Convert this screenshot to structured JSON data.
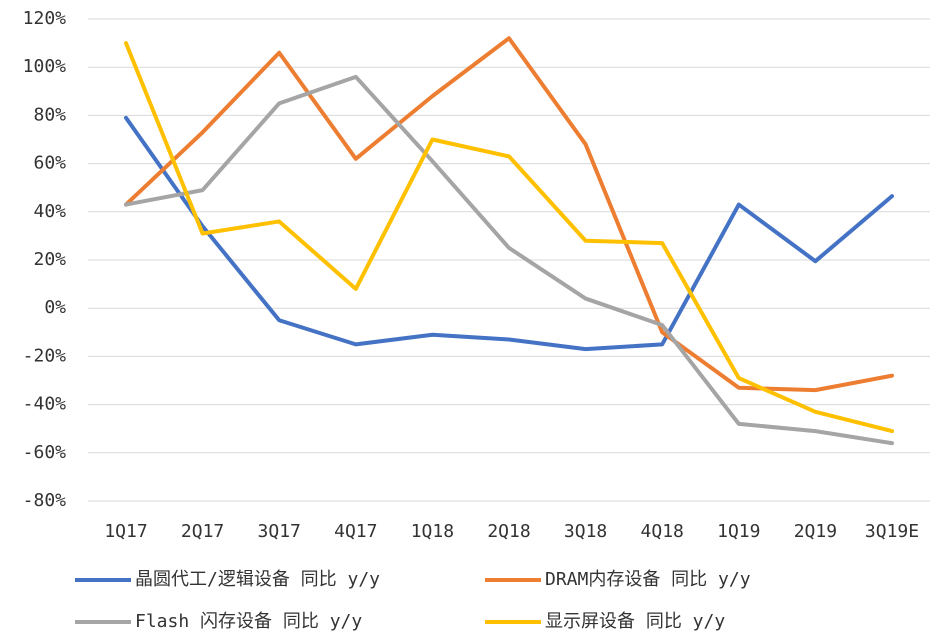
{
  "chart_data": {
    "type": "line",
    "categories": [
      "1Q17",
      "2Q17",
      "3Q17",
      "4Q17",
      "1Q18",
      "2Q18",
      "3Q18",
      "4Q18",
      "1Q19",
      "2Q19",
      "3Q19E"
    ],
    "series": [
      {
        "name": "晶圆代工/逻辑设备 同比 y/y",
        "color": "#4472c4",
        "values": [
          79,
          34,
          -5,
          -15,
          -11,
          -13,
          -17,
          -15,
          43,
          19.5,
          46.5
        ]
      },
      {
        "name": "DRAM内存设备 同比 y/y",
        "color": "#ed7d31",
        "values": [
          43,
          73,
          106,
          62,
          88,
          112,
          68,
          -10,
          -33,
          -34,
          -28
        ]
      },
      {
        "name": "Flash 闪存设备 同比 y/y",
        "color": "#a5a5a5",
        "values": [
          43,
          49,
          85,
          96,
          61,
          25,
          4,
          -7,
          -48,
          -51,
          -56
        ]
      },
      {
        "name": "显示屏设备 同比 y/y",
        "color": "#ffc000",
        "values": [
          110,
          31,
          36,
          8,
          70,
          63,
          28,
          27,
          -29,
          -43,
          -51
        ]
      }
    ],
    "ylim": [
      -80,
      120
    ],
    "yticks": [
      {
        "value": -80,
        "label": "-80%"
      },
      {
        "value": -60,
        "label": "-60%"
      },
      {
        "value": -40,
        "label": "-40%"
      },
      {
        "value": -20,
        "label": "-20%"
      },
      {
        "value": 0,
        "label": "0%"
      },
      {
        "value": 20,
        "label": "20%"
      },
      {
        "value": 40,
        "label": "40%"
      },
      {
        "value": 60,
        "label": "60%"
      },
      {
        "value": 80,
        "label": "80%"
      },
      {
        "value": 100,
        "label": "100%"
      },
      {
        "value": 120,
        "label": "120%"
      }
    ],
    "grid": true
  }
}
